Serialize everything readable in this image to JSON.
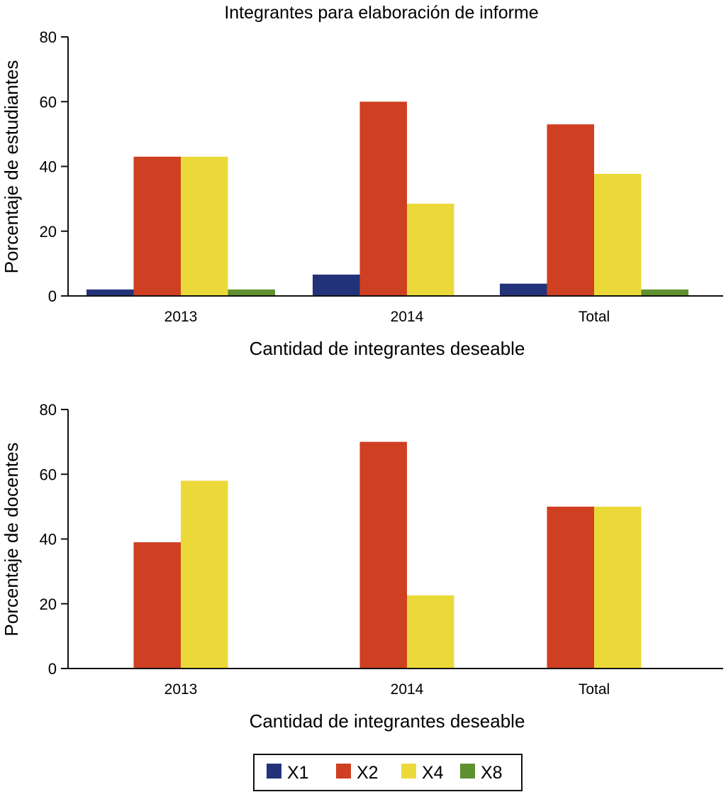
{
  "chart_data": [
    {
      "type": "bar",
      "title": "Integrantes para elaboración de informe",
      "xlabel": "Cantidad de integrantes deseable",
      "ylabel": "Porcentaje de estudiantes",
      "categories": [
        "2013",
        "2014",
        "Total"
      ],
      "ylim": [
        0,
        80
      ],
      "yticks": [
        0,
        20,
        40,
        60,
        80
      ],
      "grid": false,
      "series": [
        {
          "name": "X1",
          "values": [
            2,
            6.6,
            3.8
          ]
        },
        {
          "name": "X2",
          "values": [
            43,
            60,
            53
          ]
        },
        {
          "name": "X4",
          "values": [
            43,
            28.5,
            37.7
          ]
        },
        {
          "name": "X8",
          "values": [
            2,
            0,
            2
          ]
        }
      ]
    },
    {
      "type": "bar",
      "title": "",
      "xlabel": "Cantidad de integrantes deseable",
      "ylabel": "Porcentaje de docentes",
      "categories": [
        "2013",
        "2014",
        "Total"
      ],
      "ylim": [
        0,
        80
      ],
      "yticks": [
        0,
        20,
        40,
        60,
        80
      ],
      "grid": false,
      "series": [
        {
          "name": "X1",
          "values": [
            0,
            0,
            0
          ]
        },
        {
          "name": "X2",
          "values": [
            39,
            70,
            50
          ]
        },
        {
          "name": "X4",
          "values": [
            58,
            22.6,
            50
          ]
        },
        {
          "name": "X8",
          "values": [
            0,
            0,
            0
          ]
        }
      ]
    }
  ],
  "legend": {
    "placement": "bottom-center",
    "items": [
      {
        "label": "X1",
        "color": "#23337a"
      },
      {
        "label": "X2",
        "color": "#cf3f22"
      },
      {
        "label": "X4",
        "color": "#ebd93a"
      },
      {
        "label": "X8",
        "color": "#5e9130"
      }
    ]
  }
}
